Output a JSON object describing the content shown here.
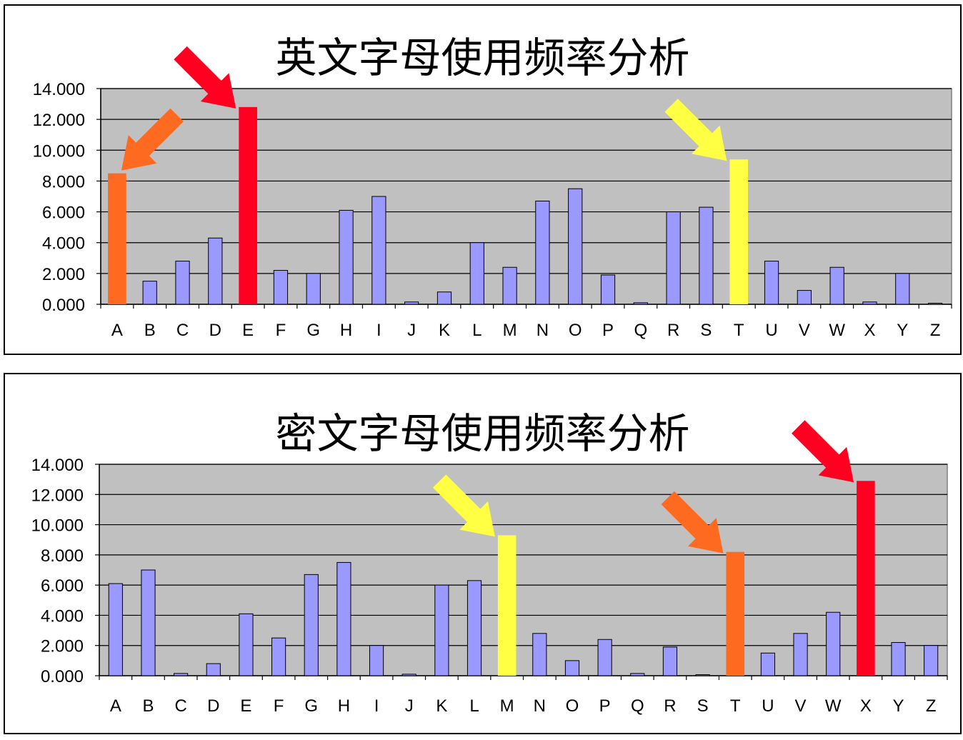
{
  "chart_data": [
    {
      "type": "bar",
      "title": "英文字母使用频率分析",
      "categories": [
        "A",
        "B",
        "C",
        "D",
        "E",
        "F",
        "G",
        "H",
        "I",
        "J",
        "K",
        "L",
        "M",
        "N",
        "O",
        "P",
        "Q",
        "R",
        "S",
        "T",
        "U",
        "V",
        "W",
        "X",
        "Y",
        "Z"
      ],
      "values": [
        8.5,
        1.5,
        2.8,
        4.3,
        12.8,
        2.2,
        2.0,
        6.1,
        7.0,
        0.15,
        0.8,
        4.0,
        2.4,
        6.7,
        7.5,
        1.9,
        0.1,
        6.0,
        6.3,
        9.4,
        2.8,
        0.9,
        2.4,
        0.15,
        2.0,
        0.07
      ],
      "highlight": {
        "A": "#ff6a21",
        "E": "#ff0020",
        "T": "#ffff44"
      },
      "arrows": [
        {
          "target": "A",
          "color": "#ff6a21"
        },
        {
          "target": "E",
          "color": "#ff0020"
        },
        {
          "target": "T",
          "color": "#ffff44"
        }
      ],
      "yticks": [
        "0.000",
        "2.000",
        "4.000",
        "6.000",
        "8.000",
        "10.000",
        "12.000",
        "14.000"
      ],
      "ylim": [
        0,
        14
      ],
      "bar_color": "#9999ff",
      "plot_bg": "#c0c0c0",
      "grid": true,
      "legend": "none"
    },
    {
      "type": "bar",
      "title": "密文字母使用频率分析",
      "categories": [
        "A",
        "B",
        "C",
        "D",
        "E",
        "F",
        "G",
        "H",
        "I",
        "J",
        "K",
        "L",
        "M",
        "N",
        "O",
        "P",
        "Q",
        "R",
        "S",
        "T",
        "U",
        "V",
        "W",
        "X",
        "Y",
        "Z"
      ],
      "values": [
        6.1,
        7.0,
        0.15,
        0.8,
        4.1,
        2.5,
        6.7,
        7.5,
        2.0,
        0.1,
        6.0,
        6.3,
        9.3,
        2.8,
        1.0,
        2.4,
        0.15,
        1.9,
        0.07,
        8.2,
        1.5,
        2.8,
        4.2,
        12.9,
        2.2,
        2.0
      ],
      "highlight": {
        "M": "#ffff44",
        "T": "#ff6a21",
        "X": "#ff0020"
      },
      "arrows": [
        {
          "target": "M",
          "color": "#ffff44"
        },
        {
          "target": "T",
          "color": "#ff6a21"
        },
        {
          "target": "X",
          "color": "#ff0020"
        }
      ],
      "yticks": [
        "0.000",
        "2.000",
        "4.000",
        "6.000",
        "8.000",
        "10.000",
        "12.000",
        "14.000"
      ],
      "ylim": [
        0,
        14
      ],
      "bar_color": "#9999ff",
      "plot_bg": "#c0c0c0",
      "grid": true,
      "legend": "none"
    }
  ]
}
